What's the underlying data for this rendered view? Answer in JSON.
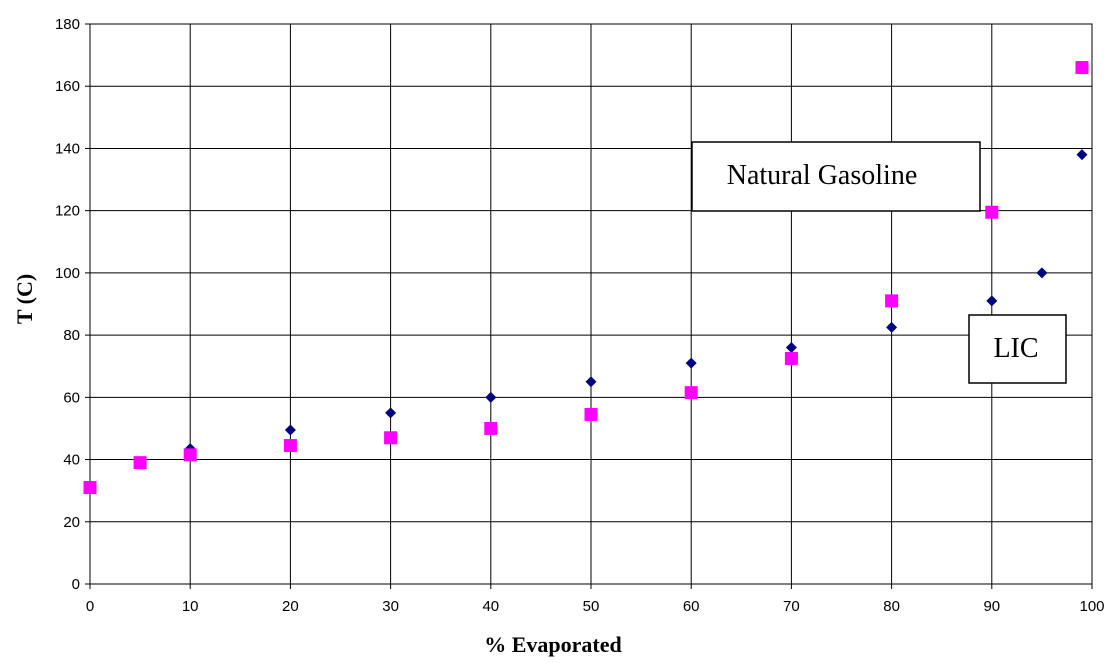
{
  "chart_data": {
    "type": "scatter",
    "title": "",
    "xlabel": "% Evaporated",
    "ylabel": "T (C)",
    "xlim": [
      0,
      100
    ],
    "ylim": [
      0,
      180
    ],
    "x_ticks": [
      "0",
      "10",
      "20",
      "30",
      "40",
      "50",
      "60",
      "70",
      "80",
      "90",
      "100"
    ],
    "y_ticks": [
      "0",
      "20",
      "40",
      "60",
      "80",
      "100",
      "120",
      "140",
      "160",
      "180"
    ],
    "grid": true,
    "series": [
      {
        "marker": "diamond",
        "color": "#000080",
        "points": [
          {
            "x": 10,
            "y": 43.5
          },
          {
            "x": 20,
            "y": 49.5
          },
          {
            "x": 30,
            "y": 55
          },
          {
            "x": 40,
            "y": 60
          },
          {
            "x": 50,
            "y": 65
          },
          {
            "x": 60,
            "y": 71
          },
          {
            "x": 70,
            "y": 76
          },
          {
            "x": 80,
            "y": 82.5
          },
          {
            "x": 90,
            "y": 91
          },
          {
            "x": 95,
            "y": 100
          },
          {
            "x": 99,
            "y": 138
          }
        ]
      },
      {
        "marker": "square",
        "color": "#FF00FF",
        "points": [
          {
            "x": 0,
            "y": 31
          },
          {
            "x": 5,
            "y": 39
          },
          {
            "x": 10,
            "y": 41.5
          },
          {
            "x": 20,
            "y": 44.5
          },
          {
            "x": 30,
            "y": 47
          },
          {
            "x": 40,
            "y": 50
          },
          {
            "x": 50,
            "y": 54.5
          },
          {
            "x": 60,
            "y": 61.5
          },
          {
            "x": 70,
            "y": 72.5
          },
          {
            "x": 80,
            "y": 91
          },
          {
            "x": 90,
            "y": 119.5
          },
          {
            "x": 99,
            "y": 166
          }
        ]
      }
    ],
    "annotations": [
      {
        "text": "Natural Gasoline"
      },
      {
        "text": "LIC"
      }
    ]
  }
}
